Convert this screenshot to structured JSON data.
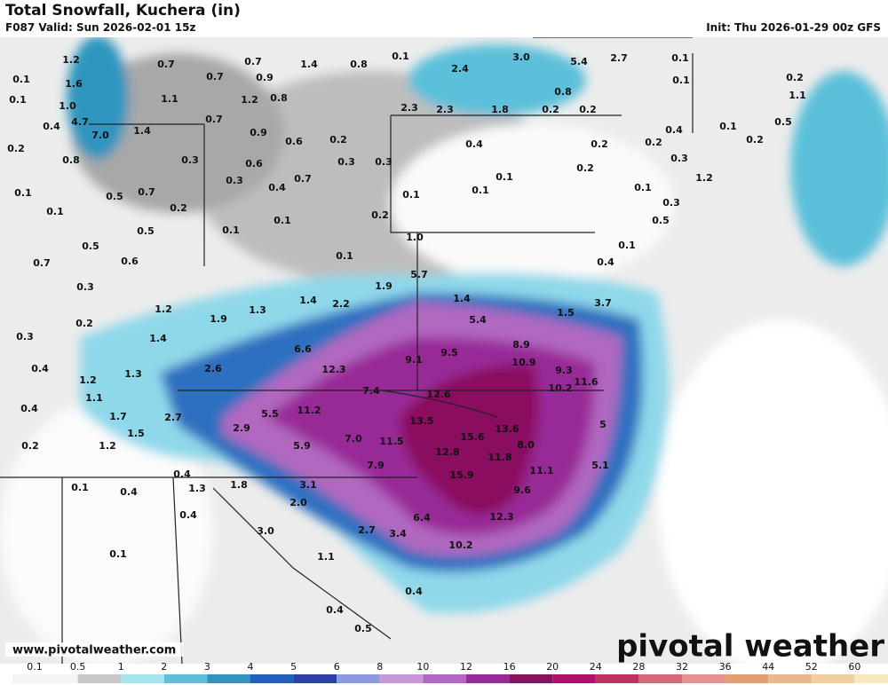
{
  "header": {
    "title": "Total Snowfall, Kuchera (in)",
    "valid": "F087 Valid: Sun 2026-02-01 15z",
    "init": "Init: Thu 2026-01-29 00z GFS"
  },
  "map": {
    "point_labels": [
      "1.2",
      "1.6",
      "0.1",
      "0.1",
      "1.0",
      "0.4",
      "4.7",
      "7.0",
      "1.4",
      "0.2",
      "0.8",
      "0.3",
      "0.1",
      "0.1",
      "0.5",
      "0.7",
      "0.2",
      "0.5",
      "0.1",
      "0.5",
      "0.6",
      "0.7",
      "0.3",
      "0.7",
      "0.7",
      "0.7",
      "0.9",
      "1.4",
      "0.8",
      "0.1",
      "1.1",
      "1.2",
      "0.8",
      "0.7",
      "0.9",
      "0.6",
      "0.2",
      "0.3",
      "0.3",
      "0.6",
      "0.3",
      "0.4",
      "0.7",
      "0.1",
      "0.2",
      "0.1",
      "0.1",
      "0.1",
      "0.4",
      "0.2",
      "0.2",
      "0.2",
      "0.1",
      "2.4",
      "3.0",
      "5.4",
      "2.7",
      "0.8",
      "0.2",
      "0.2",
      "1.8",
      "2.3",
      "2.3",
      "0.1",
      "0.1",
      "0.2",
      "1.1",
      "0.5",
      "0.1",
      "0.2",
      "0.4",
      "0.3",
      "1.2",
      "0.3",
      "0.5",
      "0.1",
      "0.4",
      "1.0",
      "0.1",
      "5.7",
      "1.9",
      "1.4",
      "2.2",
      "1.4",
      "1.3",
      "1.2",
      "1.9",
      "0.2",
      "0.3",
      "1.4",
      "1.5",
      "3.7",
      "5.4",
      "8.9",
      "6.6",
      "9.5",
      "9.1",
      "10.9",
      "12.3",
      "2.6",
      "1.3",
      "0.4",
      "1.2",
      "9.3",
      "11.6",
      "10.2",
      "7.4",
      "12.6",
      "1.1",
      "0.4",
      "11.2",
      "5.5",
      "2.7",
      "1.7",
      "13.5",
      "13.6",
      "15.6",
      "5",
      "7.0",
      "11.5",
      "2.9",
      "1.5",
      "0.2",
      "1.2",
      "8.0",
      "5.9",
      "12.8",
      "11.8",
      "11.1",
      "5.1",
      "7.9",
      "15.9",
      "0.4",
      "1.3",
      "1.8",
      "3.1",
      "9.6",
      "0.1",
      "0.4",
      "2.0",
      "0.4",
      "6.4",
      "12.3",
      "3.0",
      "2.7",
      "3.4",
      "10.2",
      "0.1",
      "1.1",
      "0.4",
      "0.4",
      "0.5"
    ]
  },
  "watermark": "www.pivotalweather.com",
  "logo": "pivotal weather",
  "colorbar": {
    "labels": [
      "0.1",
      "0.5",
      "1",
      "2",
      "3",
      "4",
      "5",
      "6",
      "8",
      "10",
      "12",
      "16",
      "20",
      "24",
      "28",
      "32",
      "36",
      "44",
      "52",
      "60"
    ],
    "colors": [
      "#f4f4f4",
      "#c8c8c8",
      "#a8e4f0",
      "#5cc0da",
      "#2f95bf",
      "#1f5fc0",
      "#2a3fa8",
      "#8a9be0",
      "#c898d8",
      "#b068c0",
      "#982a98",
      "#8a1060",
      "#b0106a",
      "#c03060",
      "#d86878",
      "#e89090",
      "#e0a070",
      "#e8b890",
      "#f0d0a0",
      "#f8e8c0"
    ]
  }
}
